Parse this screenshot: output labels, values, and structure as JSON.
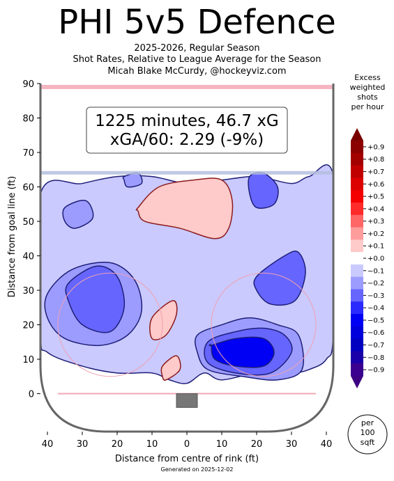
{
  "title": "PHI 5v5 Defence",
  "subtitle_lines": [
    "2025-2026, Regular Season",
    "Shot Rates, Relative to League Average for the Season",
    "Micah Blake McCurdy, @hockeyviz.com"
  ],
  "info_box": {
    "line1": "1225 minutes, 46.7 xG",
    "line2": "xGA/60: 2.29 (-9%)"
  },
  "footer": "Generated on 2025-12-02",
  "colorbar": {
    "title_lines": [
      "Excess",
      "weighted",
      "shots",
      "per hour"
    ],
    "labels": [
      "+0.9",
      "+0.8",
      "+0.7",
      "+0.6",
      "+0.5",
      "+0.4",
      "+0.3",
      "+0.2",
      "+0.1",
      "+0.0",
      "−0.1",
      "−0.2",
      "−0.3",
      "−0.4",
      "−0.5",
      "−0.6",
      "−0.7",
      "−0.8",
      "−0.9"
    ],
    "colors": [
      "#8b0000",
      "#a30000",
      "#c00000",
      "#dc0000",
      "#f40000",
      "#ff2a2a",
      "#ff6666",
      "#ff9c9c",
      "#ffcaca",
      "#ffffff",
      "#cacaff",
      "#9c9cff",
      "#6666ff",
      "#2a2aff",
      "#0000f4",
      "#0000dc",
      "#0000c0",
      "#1a00a8",
      "#3c0090"
    ]
  },
  "unit_badge": [
    "per",
    "100",
    "sqft"
  ],
  "chart_data": {
    "type": "heatmap",
    "xlabel": "Distance from centre of rink (ft)",
    "ylabel": "Distance from goal line (ft)",
    "xlim": [
      -42,
      42
    ],
    "ylim": [
      -11,
      90
    ],
    "x_ticks": [
      -40,
      -30,
      -20,
      -10,
      0,
      10,
      20,
      30,
      40
    ],
    "x_tick_labels": [
      "40",
      "30",
      "20",
      "10",
      "0",
      "10",
      "20",
      "30",
      "40"
    ],
    "y_ticks": [
      0,
      10,
      20,
      30,
      40,
      50,
      60,
      70,
      80,
      90
    ],
    "regions": [
      {
        "level": -0.1,
        "x": [
          -42,
          -30,
          -20,
          -10,
          0,
          10,
          20,
          30,
          35,
          42,
          42,
          40,
          35,
          30,
          20,
          10,
          5,
          0,
          -5,
          -10,
          -20,
          -30,
          -40,
          -42
        ],
        "y": [
          58,
          61,
          63,
          63,
          61,
          62,
          63,
          61,
          63,
          63,
          18,
          10,
          7,
          6,
          6,
          4,
          6,
          3,
          4,
          6,
          6,
          8,
          12,
          18
        ]
      },
      {
        "level": -0.2,
        "x": [
          -40,
          -33,
          -22,
          -15,
          -13,
          -17,
          -25,
          -35,
          -40
        ],
        "y": [
          29,
          36,
          38,
          33,
          24,
          17,
          14,
          16,
          22
        ]
      },
      {
        "level": -0.3,
        "x": [
          -34,
          -26,
          -20,
          -18,
          -22,
          -30,
          -34
        ],
        "y": [
          32,
          37,
          34,
          25,
          18,
          20,
          27
        ]
      },
      {
        "level": -0.2,
        "x": [
          -35,
          -29,
          -27,
          -32,
          -35
        ],
        "y": [
          54,
          56,
          51,
          48,
          50
        ]
      },
      {
        "level": -0.2,
        "x": [
          3,
          10,
          18,
          26,
          32,
          33,
          26,
          16,
          6,
          3
        ],
        "y": [
          17,
          20,
          22,
          20,
          17,
          7,
          4,
          5,
          7,
          12
        ]
      },
      {
        "level": -0.3,
        "x": [
          6,
          14,
          22,
          28,
          30,
          24,
          14,
          6
        ],
        "y": [
          15,
          18,
          19,
          17,
          12,
          6,
          6,
          9
        ]
      },
      {
        "level": -0.5,
        "x": [
          7,
          14,
          22,
          25,
          22,
          14,
          8,
          7
        ],
        "y": [
          14,
          16,
          16,
          12,
          8,
          8,
          10,
          14
        ]
      },
      {
        "level": -0.3,
        "x": [
          20,
          28,
          32,
          34,
          31,
          24,
          20
        ],
        "y": [
          34,
          40,
          41,
          35,
          27,
          26,
          30
        ]
      },
      {
        "level": -0.3,
        "x": [
          18,
          22,
          26,
          25,
          20,
          18
        ],
        "y": [
          63,
          64,
          60,
          55,
          54,
          58
        ]
      },
      {
        "level": -0.2,
        "x": [
          -18,
          -14,
          -13,
          -17,
          -18
        ],
        "y": [
          63,
          64,
          61,
          60,
          62
        ]
      },
      {
        "level": 0.1,
        "x": [
          -14,
          -8,
          2,
          10,
          13,
          12,
          8,
          -2,
          -12,
          -14
        ],
        "y": [
          54,
          60,
          62,
          62,
          56,
          48,
          45,
          48,
          50,
          53
        ]
      },
      {
        "level": 0.1,
        "x": [
          -10,
          -4,
          -3,
          -6,
          -10
        ],
        "y": [
          22,
          27,
          23,
          17,
          16
        ]
      },
      {
        "level": 0.1,
        "x": [
          -7,
          -3,
          -2,
          -6,
          -7
        ],
        "y": [
          8,
          11,
          7,
          4,
          5
        ]
      }
    ],
    "faceoff_circles": [
      {
        "x": -22,
        "y": 20,
        "r": 15
      },
      {
        "x": 22,
        "y": 20,
        "r": 15
      }
    ],
    "lines": {
      "goal_line_y": 0,
      "blue_line_y": 64,
      "red_line_y": 89
    },
    "net": {
      "x": [
        -3,
        3
      ],
      "y": [
        -4,
        0
      ]
    }
  }
}
